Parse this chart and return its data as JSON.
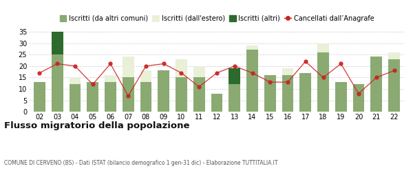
{
  "years": [
    "02",
    "03",
    "04",
    "05",
    "06",
    "07",
    "08",
    "09",
    "10",
    "11",
    "12",
    "13",
    "14",
    "15",
    "16",
    "17",
    "18",
    "19",
    "20",
    "21",
    "22"
  ],
  "iscritti_altri_comuni": [
    13,
    25,
    12,
    13,
    13,
    15,
    13,
    18,
    15,
    15,
    8,
    12,
    27,
    16,
    16,
    17,
    26,
    13,
    12,
    24,
    23
  ],
  "iscritti_estero": [
    0,
    0,
    3,
    0,
    3,
    9,
    5,
    0,
    8,
    5,
    0,
    0,
    2,
    0,
    3,
    0,
    4,
    0,
    0,
    0,
    3
  ],
  "iscritti_altri": [
    0,
    10,
    0,
    0,
    0,
    0,
    0,
    0,
    0,
    0,
    0,
    7,
    0,
    0,
    0,
    0,
    0,
    0,
    0,
    0,
    0
  ],
  "cancellati": [
    17,
    21,
    20,
    12,
    21,
    7,
    20,
    21,
    17,
    11,
    17,
    20,
    17,
    13,
    13,
    22,
    15,
    21,
    8,
    15,
    18
  ],
  "color_altri_comuni": "#8aaa72",
  "color_estero": "#e8f0d8",
  "color_altri": "#2d6a2d",
  "color_cancellati": "#cc2222",
  "title": "Flusso migratorio della popolazione",
  "subtitle": "COMUNE DI CERVENO (BS) - Dati ISTAT (bilancio demografico 1 gen-31 dic) - Elaborazione TUTTITALIA.IT",
  "legend_labels": [
    "Iscritti (da altri comuni)",
    "Iscritti (dall'estero)",
    "Iscritti (altri)",
    "Cancellati dall’Anagrafe"
  ],
  "ylim": [
    0,
    37
  ],
  "yticks": [
    0,
    5,
    10,
    15,
    20,
    25,
    30,
    35
  ],
  "bg_color": "#ffffff",
  "grid_color": "#cccccc",
  "bar_width": 0.65,
  "figsize": [
    6.0,
    2.8
  ],
  "dpi": 100
}
